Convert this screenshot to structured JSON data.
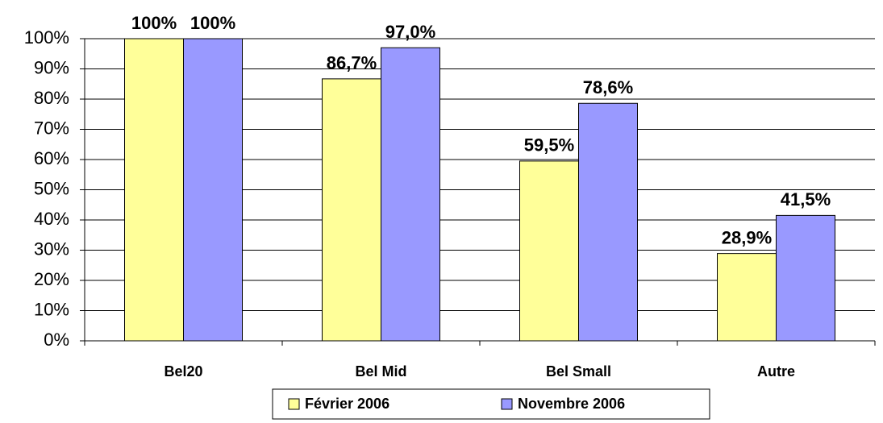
{
  "chart_data": {
    "type": "bar",
    "categories": [
      "Bel20",
      "Bel Mid",
      "Bel Small",
      "Autre"
    ],
    "series": [
      {
        "name": "Février 2006",
        "color": "#ffff99",
        "values": [
          100,
          86.7,
          59.5,
          28.9
        ],
        "value_labels": [
          "100%",
          "86,7%",
          "59,5%",
          "28,9%"
        ]
      },
      {
        "name": "Novembre 2006",
        "color": "#9999ff",
        "values": [
          100,
          97.0,
          78.6,
          41.5
        ],
        "value_labels": [
          "100%",
          "97,0%",
          "78,6%",
          "41,5%"
        ]
      }
    ],
    "ylim": [
      0,
      100
    ],
    "yticks": [
      {
        "value": 0,
        "label": "0%"
      },
      {
        "value": 10,
        "label": "10%"
      },
      {
        "value": 20,
        "label": "20%"
      },
      {
        "value": 30,
        "label": "30%"
      },
      {
        "value": 40,
        "label": "40%"
      },
      {
        "value": 50,
        "label": "50%"
      },
      {
        "value": 60,
        "label": "60%"
      },
      {
        "value": 70,
        "label": "70%"
      },
      {
        "value": 80,
        "label": "80%"
      },
      {
        "value": 90,
        "label": "90%"
      },
      {
        "value": 100,
        "label": "100%"
      }
    ],
    "grid": true,
    "legend": "bottom"
  }
}
